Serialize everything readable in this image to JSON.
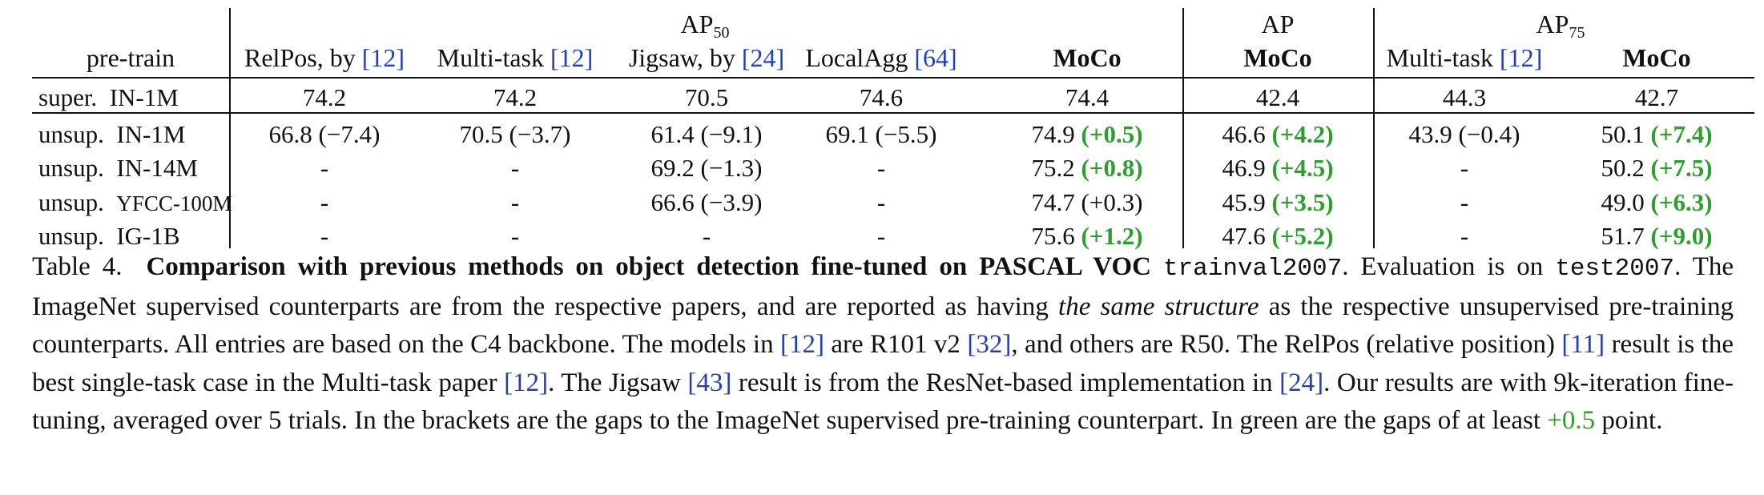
{
  "table": {
    "header": {
      "group_ap50": "AP",
      "group_ap50_sub": "50",
      "group_ap": "AP",
      "group_ap75": "AP",
      "group_ap75_sub": "75",
      "col_pretrain": "pre-train",
      "col_relpos": "RelPos, by",
      "col_relpos_ref": "[12]",
      "col_multitask": "Multi-task",
      "col_multitask_ref": "[12]",
      "col_jigsaw": "Jigsaw, by",
      "col_jigsaw_ref": "[24]",
      "col_localagg": "LocalAgg",
      "col_localagg_ref": "[64]",
      "col_moco": "MoCo",
      "col_ap_moco": "MoCo",
      "col_ap75_multitask": "Multi-task",
      "col_ap75_multitask_ref": "[12]",
      "col_ap75_moco": "MoCo"
    },
    "rows": [
      {
        "label_a": "super.",
        "label_b": "IN-1M",
        "cells": [
          {
            "v": "74.2",
            "gap": "",
            "green": false
          },
          {
            "v": "74.2",
            "gap": "",
            "green": false
          },
          {
            "v": "70.5",
            "gap": "",
            "green": false
          },
          {
            "v": "74.6",
            "gap": "",
            "green": false
          },
          {
            "v": "74.4",
            "gap": "",
            "green": false
          },
          {
            "v": "42.4",
            "gap": "",
            "green": false
          },
          {
            "v": "44.3",
            "gap": "",
            "green": false
          },
          {
            "v": "42.7",
            "gap": "",
            "green": false
          }
        ]
      },
      {
        "label_a": "unsup.",
        "label_b": "IN-1M",
        "cells": [
          {
            "v": "66.8",
            "gap": "(−7.4)",
            "green": false
          },
          {
            "v": "70.5",
            "gap": "(−3.7)",
            "green": false
          },
          {
            "v": "61.4",
            "gap": "(−9.1)",
            "green": false
          },
          {
            "v": "69.1",
            "gap": "(−5.5)",
            "green": false
          },
          {
            "v": "74.9",
            "gap": "(+0.5)",
            "green": true
          },
          {
            "v": "46.6",
            "gap": "(+4.2)",
            "green": true
          },
          {
            "v": "43.9",
            "gap": "(−0.4)",
            "green": false
          },
          {
            "v": "50.1",
            "gap": "(+7.4)",
            "green": true
          }
        ]
      },
      {
        "label_a": "unsup.",
        "label_b": "IN-14M",
        "cells": [
          {
            "v": "-",
            "gap": "",
            "green": false
          },
          {
            "v": "-",
            "gap": "",
            "green": false
          },
          {
            "v": "69.2",
            "gap": "(−1.3)",
            "green": false
          },
          {
            "v": "-",
            "gap": "",
            "green": false
          },
          {
            "v": "75.2",
            "gap": "(+0.8)",
            "green": true
          },
          {
            "v": "46.9",
            "gap": "(+4.5)",
            "green": true
          },
          {
            "v": "-",
            "gap": "",
            "green": false
          },
          {
            "v": "50.2",
            "gap": "(+7.5)",
            "green": true
          }
        ]
      },
      {
        "label_a": "unsup.",
        "label_b": "YFCC-100M",
        "cells": [
          {
            "v": "-",
            "gap": "",
            "green": false
          },
          {
            "v": "-",
            "gap": "",
            "green": false
          },
          {
            "v": "66.6",
            "gap": "(−3.9)",
            "green": false
          },
          {
            "v": "-",
            "gap": "",
            "green": false
          },
          {
            "v": "74.7",
            "gap": "(+0.3)",
            "green": false
          },
          {
            "v": "45.9",
            "gap": "(+3.5)",
            "green": true
          },
          {
            "v": "-",
            "gap": "",
            "green": false
          },
          {
            "v": "49.0",
            "gap": "(+6.3)",
            "green": true
          }
        ]
      },
      {
        "label_a": "unsup.",
        "label_b": "IG-1B",
        "cells": [
          {
            "v": "-",
            "gap": "",
            "green": false
          },
          {
            "v": "-",
            "gap": "",
            "green": false
          },
          {
            "v": "-",
            "gap": "",
            "green": false
          },
          {
            "v": "-",
            "gap": "",
            "green": false
          },
          {
            "v": "75.6",
            "gap": "(+1.2)",
            "green": true
          },
          {
            "v": "47.6",
            "gap": "(+5.2)",
            "green": true
          },
          {
            "v": "-",
            "gap": "",
            "green": false
          },
          {
            "v": "51.7",
            "gap": "(+9.0)",
            "green": true
          }
        ]
      }
    ]
  },
  "caption": {
    "label": "Table 4.",
    "title": "Comparison with previous methods on object detection fine-tuned on PASCAL VOC",
    "trainval": "trainval2007",
    "t1": ". Evaluation is on",
    "test": "test2007",
    "t2": ". The ImageNet supervised counterparts are from the respective papers, and are reported as having",
    "same_structure": "the same structure",
    "t3": "as the respective unsupervised pre-training counterparts. All entries are based on the C4 backbone. The models in",
    "ref12a": "[12]",
    "t4": "are R101 v2",
    "ref32": "[32]",
    "t5": ", and others are R50. The RelPos (relative position)",
    "ref11": "[11]",
    "t6": "result is the best single-task case in the Multi-task paper",
    "ref12b": "[12]",
    "t7": ". The Jigsaw",
    "ref43": "[43]",
    "t8": "result is from the ResNet-based implementation in",
    "ref24": "[24]",
    "t9": ". Our results are with 9k-iteration fine-tuning, averaged over 5 trials. In the brackets are the gaps to the ImageNet supervised pre-training counterpart. In green are the gaps of at least",
    "green_val": "+0.5",
    "t10": "point."
  },
  "colors": {
    "green": "#2ca02c",
    "link_blue": "#1f3fbf",
    "text": "#111111"
  }
}
